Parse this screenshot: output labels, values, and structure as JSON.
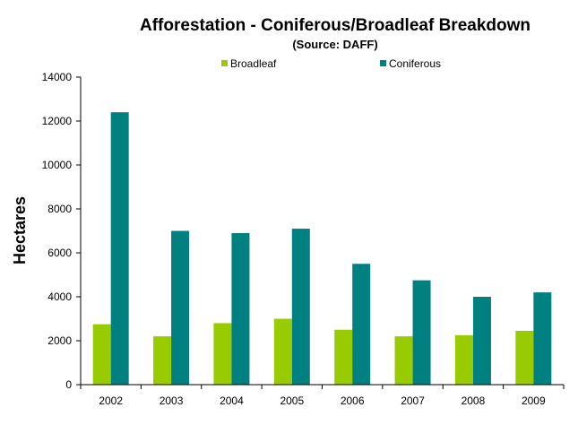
{
  "chart_data": {
    "type": "bar",
    "title": "Afforestation - Coniferous/Broadleaf Breakdown",
    "subtitle": "(Source: DAFF)",
    "xlabel": "",
    "ylabel": "Hectares",
    "ylim": [
      0,
      14000
    ],
    "yticks": [
      "0",
      "2000",
      "4000",
      "6000",
      "8000",
      "10000",
      "12000",
      "14000"
    ],
    "categories": [
      "2002",
      "2003",
      "2004",
      "2005",
      "2006",
      "2007",
      "2008",
      "2009"
    ],
    "series": [
      {
        "name": "Broadleaf",
        "color": "#99cc00",
        "values": [
          2750,
          2200,
          2800,
          3000,
          2500,
          2200,
          2250,
          2450
        ]
      },
      {
        "name": "Coniferous",
        "color": "#008080",
        "values": [
          12400,
          7000,
          6900,
          7100,
          5500,
          4750,
          4000,
          4200
        ]
      }
    ],
    "legend_position": "top",
    "grid": false
  }
}
